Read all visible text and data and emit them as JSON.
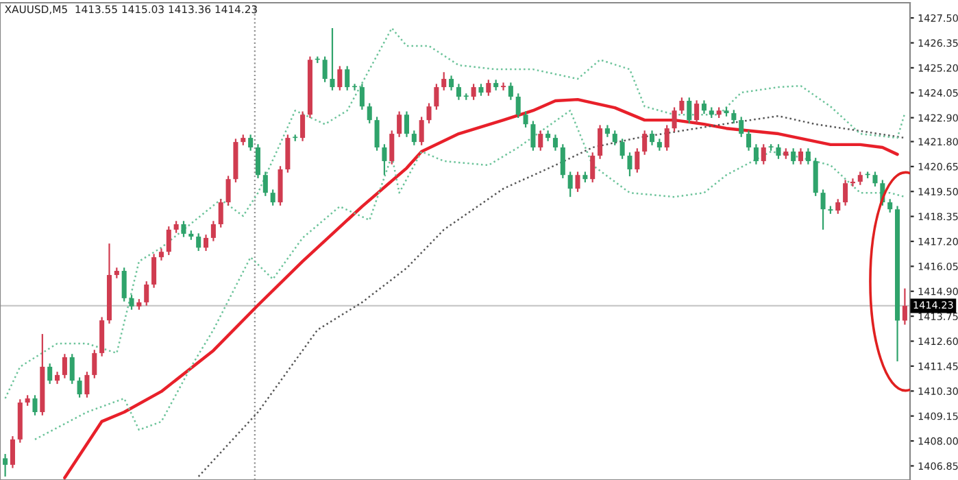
{
  "chart_data": {
    "type": "candlestick",
    "title": "XAUUSD,M5  1413.55 1415.03 1413.36 1414.23",
    "legend": false,
    "series": [
      {
        "type": "line",
        "color": "#e8202a",
        "line_style": "solid",
        "values": [
          null,
          null,
          null,
          null,
          null,
          null,
          null,
          null,
          1406.3,
          null,
          null,
          null,
          null,
          1408.9,
          null,
          null,
          1409.33,
          null,
          null,
          null,
          null,
          1410.28,
          null,
          null,
          null,
          null,
          null,
          null,
          1412.17,
          null,
          null,
          null,
          null,
          null,
          1414.26,
          null,
          null,
          null,
          null,
          null,
          1416.28,
          null,
          null,
          null,
          null,
          null,
          null,
          null,
          1418.81,
          null,
          null,
          null,
          null,
          null,
          1420.58,
          null,
          1421.34,
          null,
          null,
          null,
          null,
          1422.16,
          null,
          null,
          null,
          null,
          null,
          1422.79,
          null,
          null,
          null,
          1423.23,
          null,
          null,
          1423.68,
          null,
          null,
          1423.74,
          null,
          null,
          null,
          null,
          1423.36,
          null,
          null,
          null,
          1422.79,
          null,
          null,
          null,
          1422.79,
          null,
          null,
          null,
          1422.6,
          null,
          null,
          1422.41,
          null,
          null,
          null,
          null,
          null,
          null,
          1422.16,
          null,
          null,
          null,
          null,
          null,
          null,
          1421.66,
          null,
          null,
          null,
          1421.66,
          null,
          null,
          1421.53,
          null,
          1421.21,
          null
        ]
      },
      {
        "type": "line",
        "color": "#555555",
        "line_style": "dotted",
        "values": [
          null,
          null,
          null,
          null,
          null,
          null,
          null,
          null,
          null,
          null,
          null,
          null,
          null,
          null,
          null,
          null,
          null,
          null,
          null,
          null,
          null,
          null,
          null,
          null,
          null,
          null,
          1406.36,
          null,
          null,
          null,
          null,
          null,
          null,
          null,
          1409.33,
          null,
          null,
          null,
          null,
          null,
          null,
          null,
          1413.12,
          null,
          null,
          null,
          null,
          null,
          1414.39,
          null,
          null,
          null,
          null,
          null,
          1415.97,
          null,
          null,
          null,
          null,
          1417.74,
          null,
          null,
          null,
          null,
          null,
          null,
          null,
          1419.63,
          null,
          null,
          null,
          null,
          null,
          null,
          1420.71,
          null,
          null,
          null,
          null,
          1421.53,
          null,
          null,
          null,
          null,
          null,
          1421.97,
          null,
          null,
          null,
          null,
          null,
          null,
          null,
          1422.41,
          null,
          null,
          null,
          null,
          null,
          1422.73,
          null,
          null,
          null,
          null,
          1422.98,
          null,
          null,
          null,
          null,
          1422.6,
          null,
          null,
          null,
          null,
          null,
          1422.29,
          null,
          null,
          null,
          null,
          null,
          1421.97
        ]
      },
      {
        "type": "line",
        "color": "#6cc39a",
        "line_style": "dotted",
        "values": [
          1409.96,
          null,
          1411.42,
          null,
          null,
          null,
          null,
          1412.49,
          null,
          null,
          null,
          1412.49,
          null,
          null,
          null,
          1412.05,
          null,
          null,
          1416.28,
          null,
          null,
          1416.91,
          null,
          null,
          null,
          null,
          null,
          null,
          null,
          1419.13,
          null,
          null,
          1418.37,
          null,
          1419.44,
          null,
          null,
          null,
          null,
          1423.23,
          null,
          null,
          null,
          1422.6,
          null,
          null,
          1423.23,
          null,
          null,
          1425.13,
          null,
          null,
          1427.03,
          null,
          1426.21,
          null,
          null,
          1426.21,
          null,
          null,
          null,
          1425.32,
          null,
          null,
          null,
          null,
          1425.13,
          null,
          null,
          null,
          null,
          1425.13,
          null,
          null,
          null,
          null,
          null,
          1424.69,
          null,
          null,
          1425.57,
          null,
          null,
          null,
          1425.13,
          null,
          1423.42,
          null,
          null,
          null,
          1423.04,
          null,
          null,
          null,
          null,
          null,
          1423.04,
          null,
          null,
          1424.06,
          null,
          null,
          null,
          null,
          1424.31,
          null,
          null,
          1424.37,
          null,
          null,
          null,
          1423.42,
          null,
          null,
          null,
          1422.16,
          null,
          null,
          null,
          null,
          1421.97,
          1423.11
        ]
      },
      {
        "type": "line",
        "color": "#6cc39a",
        "line_style": "dotted",
        "values": [
          null,
          null,
          null,
          null,
          1408.07,
          null,
          null,
          null,
          null,
          null,
          null,
          1409.33,
          null,
          null,
          null,
          null,
          1409.96,
          null,
          1408.51,
          null,
          null,
          1408.89,
          null,
          null,
          null,
          1411.42,
          null,
          null,
          1413.12,
          null,
          null,
          null,
          null,
          1416.47,
          null,
          null,
          1415.46,
          null,
          null,
          null,
          1417.36,
          null,
          null,
          null,
          null,
          1418.81,
          null,
          null,
          null,
          1418.18,
          null,
          null,
          1421.15,
          1419.44,
          null,
          null,
          1421.34,
          null,
          null,
          1420.9,
          null,
          null,
          null,
          null,
          null,
          1420.71,
          null,
          null,
          null,
          1421.53,
          null,
          null,
          null,
          null,
          null,
          null,
          1423.23,
          null,
          null,
          1420.71,
          null,
          null,
          null,
          null,
          1419.44,
          null,
          null,
          null,
          null,
          null,
          1419.25,
          null,
          null,
          null,
          1419.44,
          null,
          null,
          1420.26,
          null,
          null,
          null,
          null,
          null,
          1421.34,
          null,
          null,
          1421.15,
          null,
          null,
          null,
          null,
          1420.71,
          null,
          null,
          null,
          1419.44,
          null,
          null,
          null,
          1419.44,
          null,
          1419.25
        ]
      }
    ],
    "categories": [
      null,
      null,
      null,
      null,
      null,
      null,
      null,
      null,
      null,
      null,
      null,
      null,
      null,
      null,
      null,
      null,
      null,
      null,
      null,
      null,
      null,
      null,
      null,
      null,
      null,
      null,
      null,
      null,
      null,
      null,
      null,
      null,
      null,
      null,
      null,
      null,
      null,
      null,
      null,
      null,
      null,
      null,
      null,
      null,
      null,
      null,
      null,
      null,
      null,
      null,
      null,
      null,
      null,
      null,
      null,
      null,
      null,
      null,
      null,
      null,
      null,
      null,
      null,
      null,
      null,
      null,
      null,
      null,
      null,
      null,
      null,
      null,
      null,
      null,
      null,
      null,
      null,
      null,
      null,
      null,
      null,
      null,
      null,
      null,
      null,
      null,
      null,
      null,
      null,
      null,
      null,
      null,
      null,
      null,
      null,
      null,
      null,
      null,
      null,
      null,
      null,
      null,
      null,
      null,
      null,
      null,
      null,
      null,
      null,
      null,
      null,
      null,
      null,
      null,
      null,
      null,
      null,
      null,
      null,
      null,
      null,
      null
    ],
    "ohlc": [
      [
        1407.2,
        1407.4,
        1406.36,
        1406.9
      ],
      [
        1406.9,
        1408.22,
        1406.75,
        1408.07
      ],
      [
        1408.07,
        1409.92,
        1407.92,
        1409.77
      ],
      [
        1409.77,
        1410.11,
        1409.62,
        1409.96
      ],
      [
        1409.96,
        1410.11,
        1409.18,
        1409.33
      ],
      [
        1409.33,
        1412.93,
        1409.18,
        1411.42
      ],
      [
        1411.42,
        1411.57,
        1410.63,
        1410.78
      ],
      [
        1410.78,
        1411.19,
        1410.63,
        1411.04
      ],
      [
        1411.04,
        1412.01,
        1410.89,
        1411.86
      ],
      [
        1411.86,
        1412.01,
        1410.63,
        1410.78
      ],
      [
        1410.78,
        1410.93,
        1410.0,
        1410.15
      ],
      [
        1410.15,
        1411.19,
        1410.0,
        1411.04
      ],
      [
        1411.04,
        1412.2,
        1410.89,
        1412.05
      ],
      [
        1412.05,
        1413.71,
        1411.9,
        1413.56
      ],
      [
        1413.56,
        1417.1,
        1413.41,
        1415.65
      ],
      [
        1415.65,
        1415.99,
        1415.5,
        1415.84
      ],
      [
        1415.84,
        1415.99,
        1414.43,
        1414.58
      ],
      [
        1414.58,
        1414.73,
        1414.05,
        1414.2
      ],
      [
        1414.2,
        1414.54,
        1414.05,
        1414.39
      ],
      [
        1414.39,
        1415.36,
        1414.24,
        1415.21
      ],
      [
        1415.21,
        1416.62,
        1415.06,
        1416.47
      ],
      [
        1416.47,
        1416.87,
        1416.32,
        1416.72
      ],
      [
        1416.72,
        1417.89,
        1416.57,
        1417.74
      ],
      [
        1417.74,
        1418.14,
        1417.59,
        1417.99
      ],
      [
        1417.99,
        1418.14,
        1417.4,
        1417.55
      ],
      [
        1417.55,
        1417.7,
        1417.27,
        1417.42
      ],
      [
        1417.42,
        1417.57,
        1416.76,
        1416.91
      ],
      [
        1416.91,
        1417.51,
        1416.76,
        1417.36
      ],
      [
        1417.36,
        1418.14,
        1417.21,
        1417.99
      ],
      [
        1417.99,
        1419.15,
        1417.84,
        1419.0
      ],
      [
        1419.0,
        1420.22,
        1418.85,
        1420.07
      ],
      [
        1420.07,
        1421.93,
        1419.92,
        1421.78
      ],
      [
        1421.78,
        1422.12,
        1421.63,
        1421.97
      ],
      [
        1421.97,
        1422.12,
        1421.38,
        1421.53
      ],
      [
        1421.53,
        1421.68,
        1420.11,
        1420.26
      ],
      [
        1420.26,
        1420.41,
        1419.29,
        1419.44
      ],
      [
        1419.44,
        1419.59,
        1418.85,
        1419.0
      ],
      [
        1419.0,
        1420.67,
        1418.85,
        1420.52
      ],
      [
        1420.52,
        1422.12,
        1420.37,
        1421.97
      ],
      [
        1421.97,
        1422.12,
        1421.82,
        1421.97
      ],
      [
        1421.97,
        1423.19,
        1421.82,
        1423.04
      ],
      [
        1423.04,
        1425.72,
        1422.89,
        1425.57
      ],
      [
        1425.57,
        1425.72,
        1425.42,
        1425.57
      ],
      [
        1425.57,
        1425.72,
        1424.54,
        1424.69
      ],
      [
        1424.69,
        1427.03,
        1424.16,
        1424.31
      ],
      [
        1424.31,
        1425.28,
        1424.16,
        1425.13
      ],
      [
        1425.13,
        1425.28,
        1424.16,
        1424.31
      ],
      [
        1424.31,
        1424.46,
        1424.16,
        1424.31
      ],
      [
        1424.31,
        1424.46,
        1423.27,
        1423.42
      ],
      [
        1423.42,
        1423.57,
        1422.64,
        1422.79
      ],
      [
        1422.79,
        1422.94,
        1421.38,
        1421.53
      ],
      [
        1421.53,
        1421.68,
        1420.26,
        1420.9
      ],
      [
        1420.9,
        1422.31,
        1420.75,
        1422.16
      ],
      [
        1422.16,
        1423.19,
        1422.01,
        1423.04
      ],
      [
        1423.04,
        1423.19,
        1422.01,
        1422.16
      ],
      [
        1422.16,
        1422.31,
        1421.63,
        1421.78
      ],
      [
        1421.78,
        1422.94,
        1421.63,
        1422.79
      ],
      [
        1422.79,
        1423.57,
        1422.64,
        1423.42
      ],
      [
        1423.42,
        1424.46,
        1423.27,
        1424.31
      ],
      [
        1424.31,
        1425.0,
        1424.16,
        1424.69
      ],
      [
        1424.69,
        1424.84,
        1424.16,
        1424.31
      ],
      [
        1424.31,
        1424.46,
        1423.72,
        1423.87
      ],
      [
        1423.87,
        1424.02,
        1423.72,
        1423.87
      ],
      [
        1423.87,
        1424.46,
        1423.72,
        1424.31
      ],
      [
        1424.31,
        1424.46,
        1423.91,
        1424.06
      ],
      [
        1424.06,
        1424.65,
        1423.91,
        1424.5
      ],
      [
        1424.5,
        1424.65,
        1424.16,
        1424.31
      ],
      [
        1424.31,
        1424.52,
        1424.16,
        1424.37
      ],
      [
        1424.37,
        1424.52,
        1423.72,
        1423.87
      ],
      [
        1423.87,
        1424.02,
        1422.89,
        1423.04
      ],
      [
        1423.04,
        1423.19,
        1422.45,
        1422.6
      ],
      [
        1422.6,
        1422.75,
        1421.38,
        1421.53
      ],
      [
        1421.53,
        1422.31,
        1421.38,
        1422.16
      ],
      [
        1422.16,
        1422.31,
        1421.82,
        1421.97
      ],
      [
        1421.97,
        1422.12,
        1421.38,
        1421.53
      ],
      [
        1421.53,
        1421.68,
        1420.11,
        1420.26
      ],
      [
        1420.26,
        1420.41,
        1419.25,
        1419.63
      ],
      [
        1419.63,
        1420.41,
        1419.48,
        1420.26
      ],
      [
        1420.26,
        1420.41,
        1419.92,
        1420.07
      ],
      [
        1420.07,
        1421.3,
        1419.92,
        1421.15
      ],
      [
        1421.15,
        1422.56,
        1421.0,
        1422.41
      ],
      [
        1422.41,
        1422.56,
        1422.01,
        1422.16
      ],
      [
        1422.16,
        1422.31,
        1421.63,
        1421.78
      ],
      [
        1421.78,
        1421.93,
        1421.0,
        1421.15
      ],
      [
        1421.15,
        1421.3,
        1420.2,
        1420.52
      ],
      [
        1420.52,
        1421.49,
        1420.37,
        1421.34
      ],
      [
        1421.34,
        1422.31,
        1421.19,
        1422.16
      ],
      [
        1422.16,
        1422.31,
        1421.63,
        1421.78
      ],
      [
        1421.78,
        1421.93,
        1421.38,
        1421.53
      ],
      [
        1421.53,
        1422.56,
        1421.38,
        1422.41
      ],
      [
        1422.41,
        1423.38,
        1422.26,
        1423.23
      ],
      [
        1423.23,
        1423.83,
        1423.08,
        1423.68
      ],
      [
        1423.68,
        1423.83,
        1422.64,
        1422.79
      ],
      [
        1422.79,
        1423.7,
        1422.64,
        1423.55
      ],
      [
        1423.55,
        1423.7,
        1423.08,
        1423.23
      ],
      [
        1423.23,
        1423.38,
        1422.89,
        1423.04
      ],
      [
        1423.04,
        1423.38,
        1422.89,
        1423.23
      ],
      [
        1423.23,
        1423.38,
        1422.96,
        1423.11
      ],
      [
        1423.11,
        1423.26,
        1422.64,
        1422.79
      ],
      [
        1422.79,
        1422.94,
        1422.01,
        1422.16
      ],
      [
        1422.16,
        1422.31,
        1421.38,
        1421.53
      ],
      [
        1421.53,
        1421.68,
        1420.75,
        1420.9
      ],
      [
        1420.9,
        1421.68,
        1420.75,
        1421.53
      ],
      [
        1421.53,
        1421.68,
        1421.38,
        1421.53
      ],
      [
        1421.53,
        1421.68,
        1421.0,
        1421.15
      ],
      [
        1421.15,
        1421.49,
        1421.0,
        1421.34
      ],
      [
        1421.34,
        1421.49,
        1420.75,
        1420.9
      ],
      [
        1420.9,
        1421.49,
        1420.75,
        1421.34
      ],
      [
        1421.34,
        1421.49,
        1420.75,
        1420.9
      ],
      [
        1420.9,
        1421.05,
        1419.29,
        1419.44
      ],
      [
        1419.44,
        1419.59,
        1417.74,
        1418.68
      ],
      [
        1418.68,
        1418.83,
        1418.47,
        1418.62
      ],
      [
        1418.62,
        1419.15,
        1418.47,
        1419.0
      ],
      [
        1419.0,
        1420.03,
        1418.85,
        1419.88
      ],
      [
        1419.88,
        1420.1,
        1419.73,
        1419.95
      ],
      [
        1419.95,
        1420.41,
        1419.8,
        1420.26
      ],
      [
        1420.26,
        1420.41,
        1420.11,
        1420.26
      ],
      [
        1420.26,
        1420.41,
        1419.73,
        1419.88
      ],
      [
        1419.88,
        1420.03,
        1418.85,
        1419.0
      ],
      [
        1419.0,
        1419.15,
        1418.53,
        1418.68
      ],
      [
        1418.68,
        1418.83,
        1411.67,
        1413.55
      ],
      [
        1413.55,
        1415.03,
        1413.36,
        1414.23
      ]
    ],
    "colors": [
      "#2fa36b",
      "#d03c50",
      "#d03c50",
      "#d03c50",
      "#2fa36b",
      "#d03c50",
      "#2fa36b",
      "#d03c50",
      "#d03c50",
      "#2fa36b",
      "#2fa36b",
      "#d03c50",
      "#d03c50",
      "#d03c50",
      "#d03c50",
      "#d03c50",
      "#2fa36b",
      "#2fa36b",
      "#d03c50",
      "#d03c50",
      "#d03c50",
      "#d03c50",
      "#d03c50",
      "#d03c50",
      "#2fa36b",
      "#2fa36b",
      "#2fa36b",
      "#d03c50",
      "#d03c50",
      "#d03c50",
      "#d03c50",
      "#d03c50",
      "#d03c50",
      "#2fa36b",
      "#2fa36b",
      "#2fa36b",
      "#2fa36b",
      "#d03c50",
      "#d03c50",
      "#2fa36b",
      "#d03c50",
      "#d03c50",
      "#2fa36b",
      "#2fa36b",
      "#2fa36b",
      "#d03c50",
      "#2fa36b",
      "#2fa36b",
      "#2fa36b",
      "#2fa36b",
      "#2fa36b",
      "#2fa36b",
      "#d03c50",
      "#d03c50",
      "#2fa36b",
      "#2fa36b",
      "#d03c50",
      "#d03c50",
      "#d03c50",
      "#d03c50",
      "#2fa36b",
      "#2fa36b",
      "#2fa36b",
      "#d03c50",
      "#2fa36b",
      "#d03c50",
      "#2fa36b",
      "#d03c50",
      "#2fa36b",
      "#2fa36b",
      "#2fa36b",
      "#2fa36b",
      "#d03c50",
      "#2fa36b",
      "#2fa36b",
      "#2fa36b",
      "#2fa36b",
      "#d03c50",
      "#2fa36b",
      "#d03c50",
      "#d03c50",
      "#2fa36b",
      "#2fa36b",
      "#2fa36b",
      "#2fa36b",
      "#d03c50",
      "#d03c50",
      "#2fa36b",
      "#2fa36b",
      "#d03c50",
      "#d03c50",
      "#d03c50",
      "#2fa36b",
      "#d03c50",
      "#2fa36b",
      "#2fa36b",
      "#d03c50",
      "#2fa36b",
      "#2fa36b",
      "#2fa36b",
      "#2fa36b",
      "#2fa36b",
      "#d03c50",
      "#2fa36b",
      "#2fa36b",
      "#d03c50",
      "#2fa36b",
      "#d03c50",
      "#2fa36b",
      "#2fa36b",
      "#2fa36b",
      "#2fa36b",
      "#d03c50",
      "#d03c50",
      "#d03c50",
      "#d03c50",
      "#2fa36b",
      "#2fa36b",
      "#2fa36b",
      "#2fa36b",
      "#2fa36b",
      "#d03c50"
    ],
    "ref_lines": [
      {
        "axis": "y",
        "value": 1414.23,
        "label": "1414.23",
        "color": "#c8c8c8",
        "line_style": "solid"
      }
    ],
    "ylim": [
      1406.2,
      1428.2
    ],
    "yticks": [
      {
        "value": 1427.5,
        "label": "1427.50"
      },
      {
        "value": 1426.35,
        "label": "1426.35"
      },
      {
        "value": 1425.2,
        "label": "1425.20"
      },
      {
        "value": 1424.05,
        "label": "1424.05"
      },
      {
        "value": 1422.9,
        "label": "1422.90"
      },
      {
        "value": 1421.8,
        "label": "1421.80"
      },
      {
        "value": 1420.65,
        "label": "1420.65"
      },
      {
        "value": 1419.5,
        "label": "1419.50"
      },
      {
        "value": 1418.35,
        "label": "1418.35"
      },
      {
        "value": 1417.2,
        "label": "1417.20"
      },
      {
        "value": 1416.05,
        "label": "1416.05"
      },
      {
        "value": 1414.9,
        "label": "1414.90"
      },
      {
        "value": 1413.75,
        "label": "1413.75"
      },
      {
        "value": 1412.6,
        "label": "1412.60"
      },
      {
        "value": 1411.45,
        "label": "1411.45"
      },
      {
        "value": 1410.3,
        "label": "1410.30"
      },
      {
        "value": 1409.15,
        "label": "1409.15"
      },
      {
        "value": 1408.0,
        "label": "1408.00"
      },
      {
        "value": 1406.85,
        "label": "1406.85"
      }
    ],
    "tick_labels": "y"
  }
}
